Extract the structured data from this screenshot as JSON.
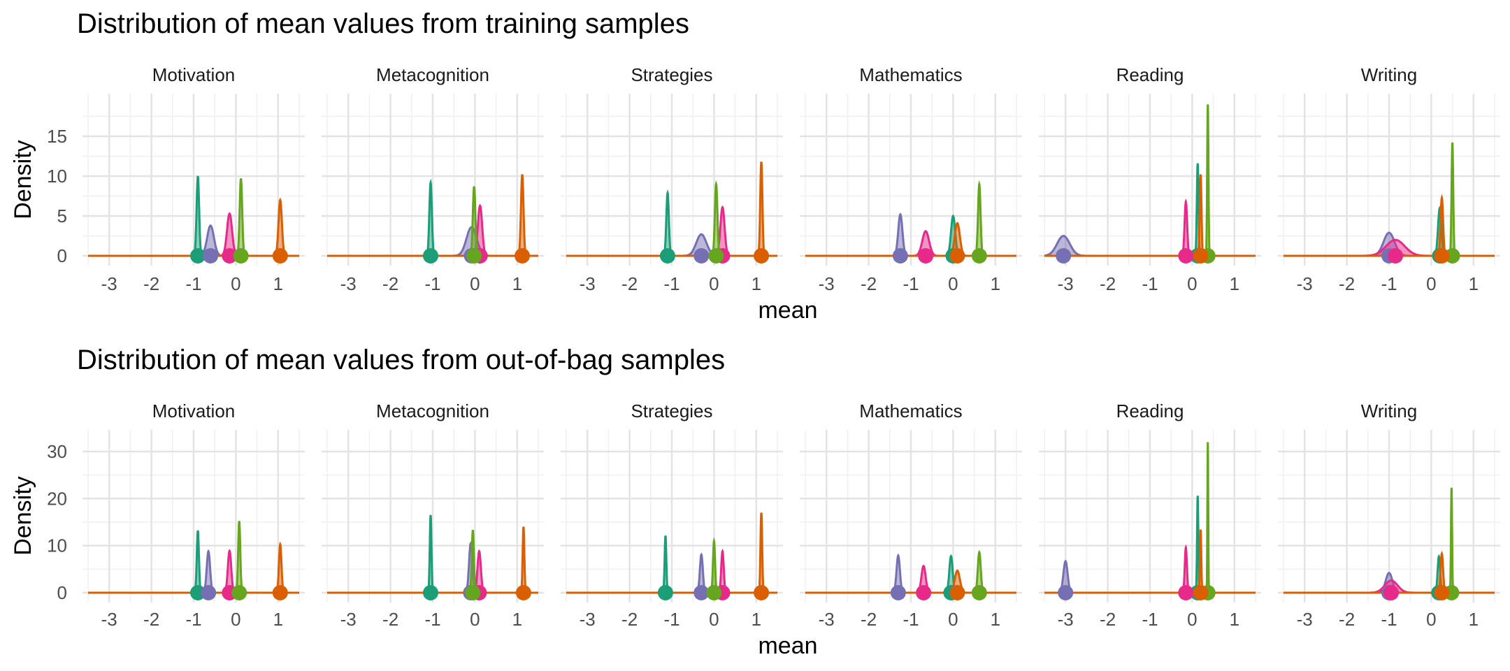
{
  "chart_data": [
    {
      "type": "area",
      "title": "Distribution of mean values from training samples",
      "xlabel": "mean",
      "ylabel": "Density",
      "panels": [
        "Motivation",
        "Metacognition",
        "Strategies",
        "Mathematics",
        "Reading",
        "Writing"
      ],
      "xlim": [
        -3.5,
        1.5
      ],
      "xticks": [
        "-3",
        "-2",
        "-1",
        "0",
        "1"
      ],
      "ylim": [
        0,
        20
      ],
      "yticks": [
        "0",
        "5",
        "10",
        "15"
      ],
      "grid": true,
      "legend": "none",
      "colors": [
        "#1b9e77",
        "#7570b3",
        "#e7298a",
        "#66a61e",
        "#d95f02"
      ],
      "distributions": {
        "Motivation": [
          {
            "mean": -0.9,
            "peak": 10,
            "sd": 0.03
          },
          {
            "mean": -0.6,
            "peak": 3.8,
            "sd": 0.08
          },
          {
            "mean": -0.15,
            "peak": 5.3,
            "sd": 0.06
          },
          {
            "mean": 0.12,
            "peak": 9.7,
            "sd": 0.03
          },
          {
            "mean": 1.05,
            "peak": 7.0,
            "sd": 0.04
          }
        ],
        "Metacognition": [
          {
            "mean": -1.05,
            "peak": 9.2,
            "sd": 0.03
          },
          {
            "mean": -0.08,
            "peak": 3.6,
            "sd": 0.12
          },
          {
            "mean": 0.12,
            "peak": 6.3,
            "sd": 0.05
          },
          {
            "mean": -0.02,
            "peak": 8.7,
            "sd": 0.03
          },
          {
            "mean": 1.12,
            "peak": 10.2,
            "sd": 0.03
          }
        ],
        "Strategies": [
          {
            "mean": -1.1,
            "peak": 7.9,
            "sd": 0.03
          },
          {
            "mean": -0.3,
            "peak": 2.7,
            "sd": 0.12
          },
          {
            "mean": 0.2,
            "peak": 6.1,
            "sd": 0.05
          },
          {
            "mean": 0.05,
            "peak": 9.0,
            "sd": 0.03
          },
          {
            "mean": 1.12,
            "peak": 11.8,
            "sd": 0.025
          }
        ],
        "Mathematics": [
          {
            "mean": 0.0,
            "peak": 5.0,
            "sd": 0.05
          },
          {
            "mean": -1.25,
            "peak": 5.2,
            "sd": 0.05
          },
          {
            "mean": -0.65,
            "peak": 3.1,
            "sd": 0.08
          },
          {
            "mean": 0.62,
            "peak": 9.0,
            "sd": 0.03
          },
          {
            "mean": 0.1,
            "peak": 4.1,
            "sd": 0.06
          }
        ],
        "Reading": [
          {
            "mean": 0.13,
            "peak": 11.6,
            "sd": 0.02
          },
          {
            "mean": -3.05,
            "peak": 2.5,
            "sd": 0.15
          },
          {
            "mean": -0.15,
            "peak": 6.8,
            "sd": 0.03
          },
          {
            "mean": 0.37,
            "peak": 19.0,
            "sd": 0.015
          },
          {
            "mean": 0.2,
            "peak": 10.2,
            "sd": 0.02
          }
        ],
        "Writing": [
          {
            "mean": 0.2,
            "peak": 6.0,
            "sd": 0.04
          },
          {
            "mean": -1.0,
            "peak": 2.9,
            "sd": 0.13
          },
          {
            "mean": -0.85,
            "peak": 2.0,
            "sd": 0.22
          },
          {
            "mean": 0.5,
            "peak": 14.2,
            "sd": 0.02
          },
          {
            "mean": 0.25,
            "peak": 7.3,
            "sd": 0.03
          }
        ]
      }
    },
    {
      "type": "area",
      "title": "Distribution of mean values from out-of-bag samples",
      "xlabel": "mean",
      "ylabel": "Density",
      "panels": [
        "Motivation",
        "Metacognition",
        "Strategies",
        "Mathematics",
        "Reading",
        "Writing"
      ],
      "xlim": [
        -3.5,
        1.5
      ],
      "xticks": [
        "-3",
        "-2",
        "-1",
        "0",
        "1"
      ],
      "ylim": [
        0,
        34
      ],
      "yticks": [
        "0",
        "10",
        "20",
        "30"
      ],
      "grid": true,
      "legend": "none",
      "colors": [
        "#1b9e77",
        "#7570b3",
        "#e7298a",
        "#66a61e",
        "#d95f02"
      ],
      "distributions": {
        "Motivation": [
          {
            "mean": -0.9,
            "peak": 13.2,
            "sd": 0.025
          },
          {
            "mean": -0.65,
            "peak": 8.8,
            "sd": 0.04
          },
          {
            "mean": -0.15,
            "peak": 8.9,
            "sd": 0.04
          },
          {
            "mean": 0.08,
            "peak": 15.2,
            "sd": 0.025
          },
          {
            "mean": 1.05,
            "peak": 10.3,
            "sd": 0.03
          }
        ],
        "Metacognition": [
          {
            "mean": -1.05,
            "peak": 16.5,
            "sd": 0.02
          },
          {
            "mean": -0.1,
            "peak": 10.5,
            "sd": 0.04
          },
          {
            "mean": 0.1,
            "peak": 8.8,
            "sd": 0.04
          },
          {
            "mean": -0.05,
            "peak": 13.3,
            "sd": 0.025
          },
          {
            "mean": 1.15,
            "peak": 14.0,
            "sd": 0.02
          }
        ],
        "Strategies": [
          {
            "mean": -1.15,
            "peak": 12.1,
            "sd": 0.02
          },
          {
            "mean": -0.3,
            "peak": 8.1,
            "sd": 0.035
          },
          {
            "mean": 0.2,
            "peak": 8.8,
            "sd": 0.03
          },
          {
            "mean": 0.0,
            "peak": 11.0,
            "sd": 0.025
          },
          {
            "mean": 1.12,
            "peak": 17.0,
            "sd": 0.02
          }
        ],
        "Mathematics": [
          {
            "mean": -0.05,
            "peak": 7.8,
            "sd": 0.04
          },
          {
            "mean": -1.3,
            "peak": 7.9,
            "sd": 0.04
          },
          {
            "mean": -0.7,
            "peak": 5.7,
            "sd": 0.05
          },
          {
            "mean": 0.62,
            "peak": 8.6,
            "sd": 0.035
          },
          {
            "mean": 0.1,
            "peak": 4.7,
            "sd": 0.06
          }
        ],
        "Reading": [
          {
            "mean": 0.13,
            "peak": 20.6,
            "sd": 0.015
          },
          {
            "mean": -3.0,
            "peak": 6.7,
            "sd": 0.05
          },
          {
            "mean": -0.15,
            "peak": 9.6,
            "sd": 0.025
          },
          {
            "mean": 0.37,
            "peak": 32.0,
            "sd": 0.01
          },
          {
            "mean": 0.2,
            "peak": 13.4,
            "sd": 0.015
          }
        ],
        "Writing": [
          {
            "mean": 0.18,
            "peak": 7.7,
            "sd": 0.03
          },
          {
            "mean": -1.0,
            "peak": 4.2,
            "sd": 0.08
          },
          {
            "mean": -0.95,
            "peak": 2.6,
            "sd": 0.15
          },
          {
            "mean": 0.48,
            "peak": 22.3,
            "sd": 0.013
          },
          {
            "mean": 0.25,
            "peak": 8.3,
            "sd": 0.03
          }
        ]
      }
    }
  ]
}
